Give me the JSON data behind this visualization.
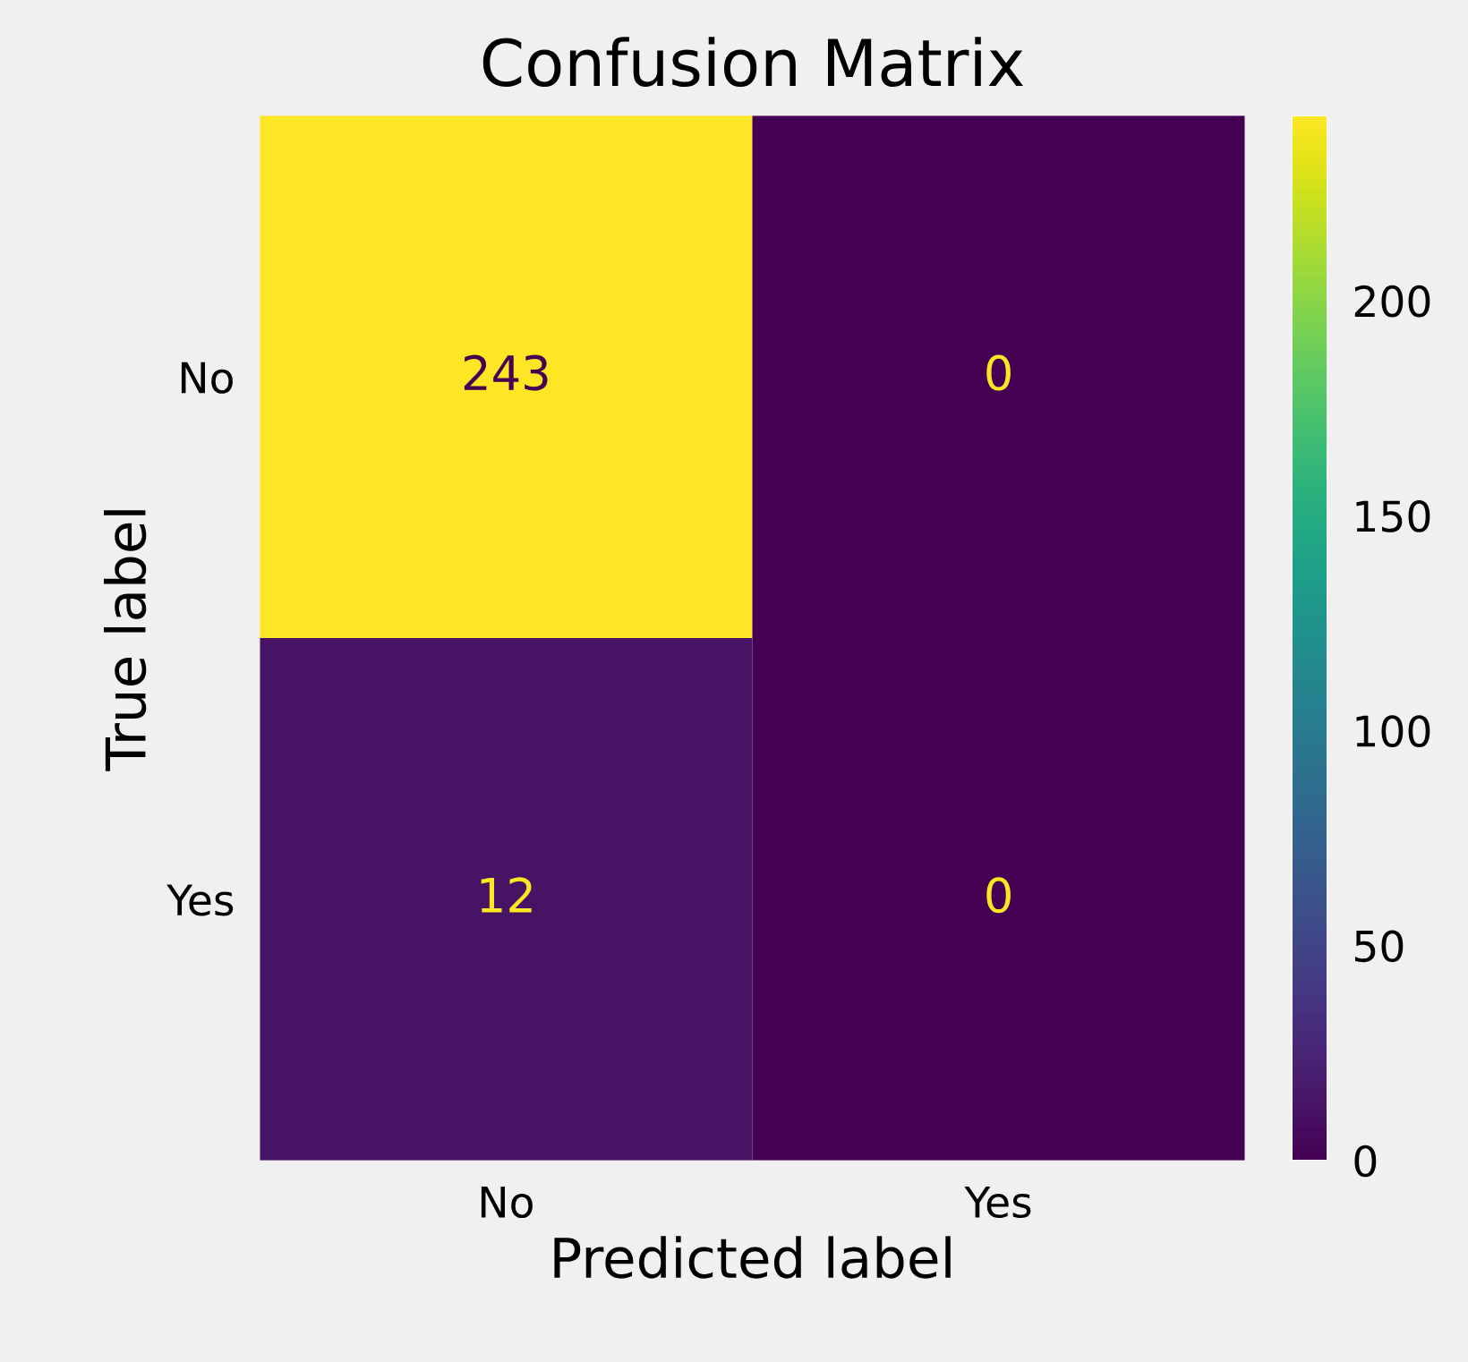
{
  "chart_data": {
    "type": "heatmap",
    "title": "Confusion Matrix",
    "xlabel": "Predicted label",
    "ylabel": "True label",
    "categories": [
      "No",
      "Yes"
    ],
    "y_categories": [
      "No",
      "Yes"
    ],
    "cells": [
      [
        243,
        0
      ],
      [
        12,
        0
      ]
    ],
    "clim": [
      0,
      243
    ],
    "cticks": [
      0,
      50,
      100,
      150,
      200
    ],
    "data_labels": true,
    "grid": false
  }
}
